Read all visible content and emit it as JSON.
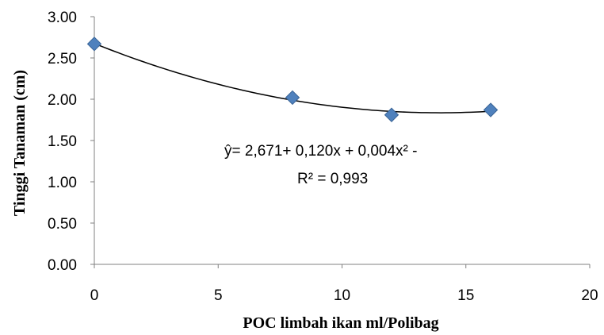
{
  "chart_data": {
    "type": "scatter",
    "title": "",
    "xlabel": "POC limbah ikan ml/Polibag",
    "ylabel": "Tinggi Tanaman (cm)",
    "xlim": [
      0,
      20
    ],
    "ylim": [
      0,
      3.0
    ],
    "x_ticks": [
      "0",
      "5",
      "10",
      "15",
      "20"
    ],
    "y_ticks": [
      "0.00",
      "0.50",
      "1.00",
      "1.50",
      "2.00",
      "2.50",
      "3.00"
    ],
    "points": {
      "x": [
        0,
        8,
        12,
        16
      ],
      "y": [
        2.67,
        2.02,
        1.81,
        1.87
      ]
    },
    "trendline": {
      "type": "polynomial",
      "order": 2,
      "x_range": [
        0,
        16
      ]
    },
    "equation": "ŷ= 2,671+ 0,120x +  0,004x² -",
    "r_squared": "R² = 0,993",
    "marker_color": "#4F81BD",
    "marker_stroke": "#3A6496",
    "line_color": "#000000",
    "grid": false,
    "legend": "none"
  }
}
